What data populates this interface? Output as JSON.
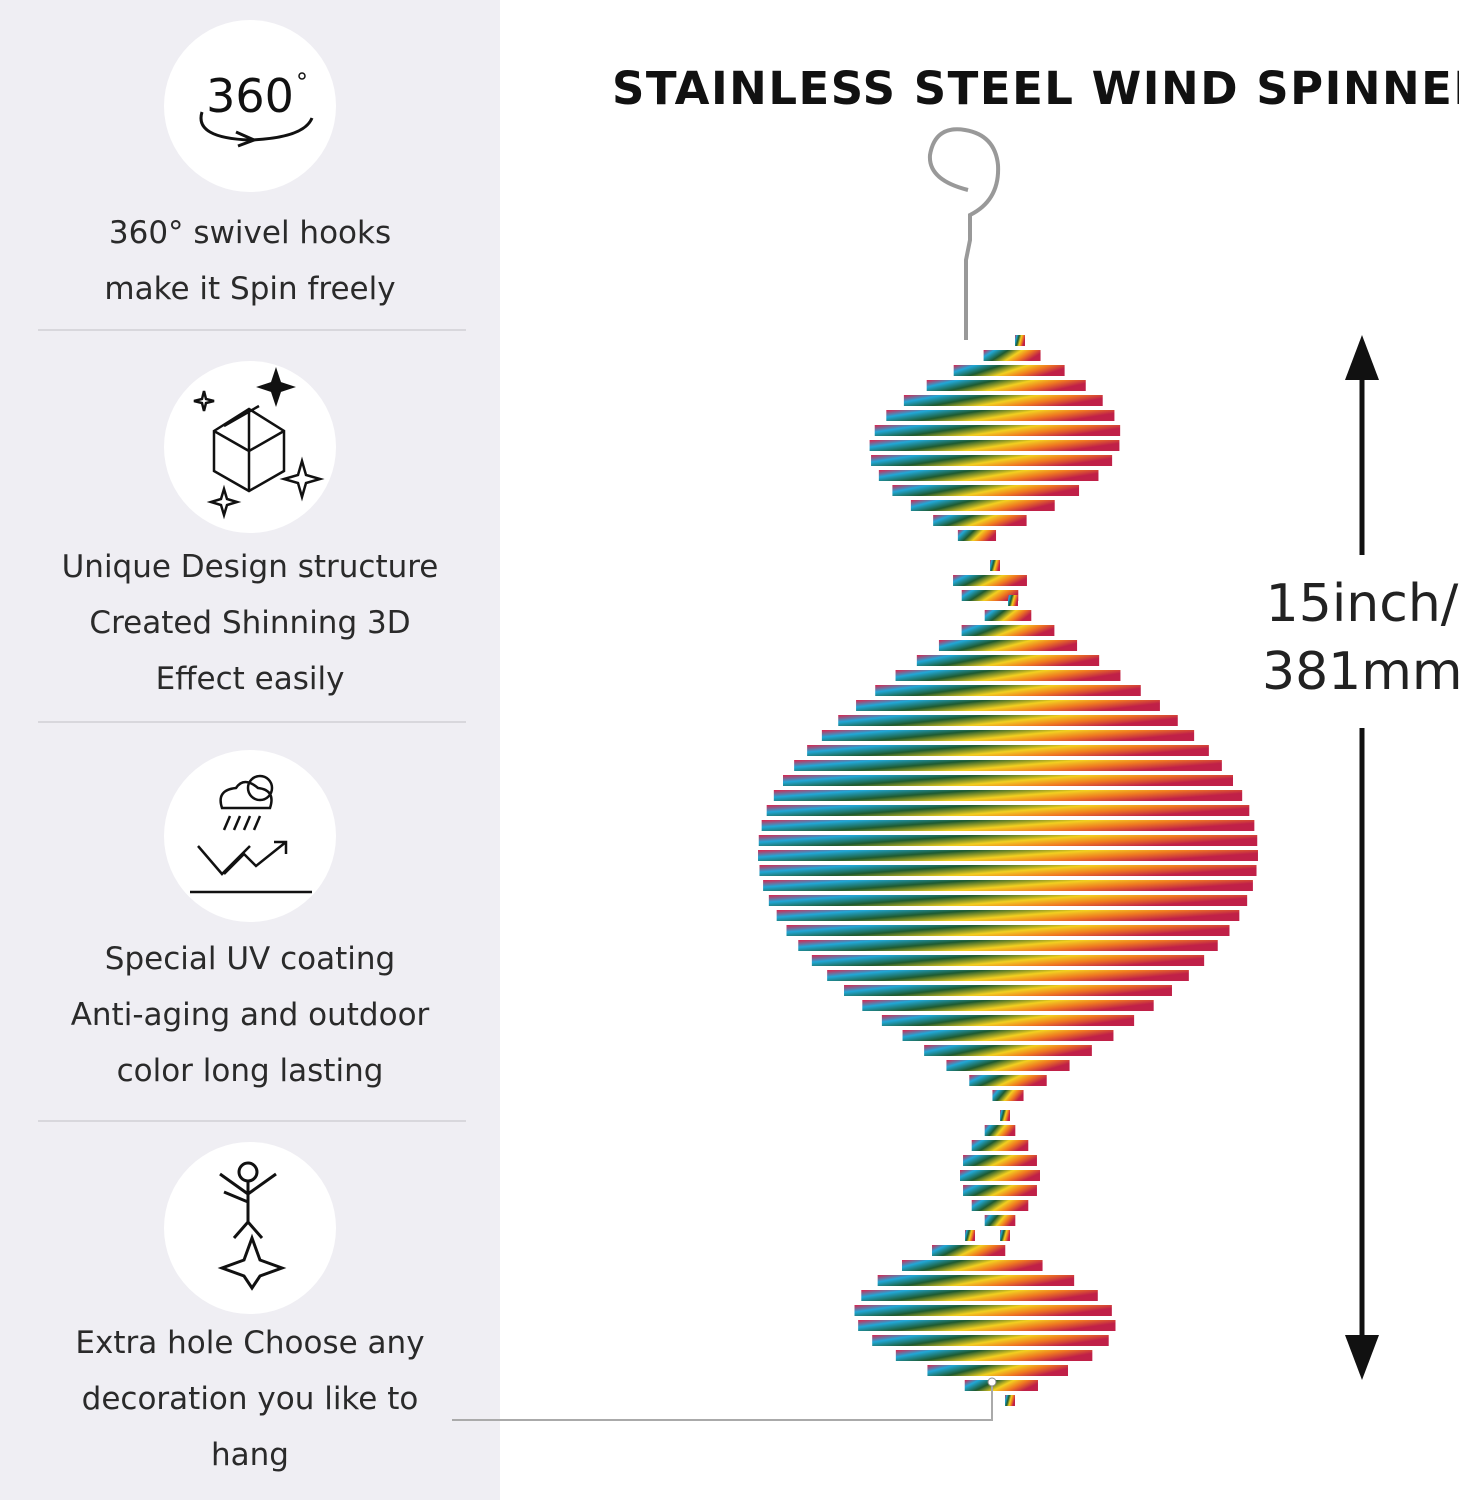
{
  "title": "STAINLESS STEEL WIND SPINNER",
  "features": [
    {
      "icon": "rotate-360-icon",
      "icon_text": "360",
      "lines": [
        "360° swivel hooks",
        "make it Spin freely"
      ]
    },
    {
      "icon": "sparkle-cube-icon",
      "lines": [
        "Unique Design structure",
        "Created Shinning 3D",
        "Effect easily"
      ]
    },
    {
      "icon": "weather-shield-icon",
      "lines": [
        "Special UV coating",
        "Anti-aging and outdoor",
        "color long lasting"
      ]
    },
    {
      "icon": "hanging-figure-icon",
      "lines": [
        "Extra hole Choose any",
        "decoration you like to",
        "hang"
      ]
    }
  ],
  "dimension": {
    "line1": "15inch/",
    "line2": "381mm"
  },
  "colors": {
    "panel": "#efeef3",
    "rainbow": [
      "#e0204a",
      "#f07a20",
      "#f2d020",
      "#30b040",
      "#20a8d8",
      "#3050c0",
      "#a03090"
    ]
  }
}
